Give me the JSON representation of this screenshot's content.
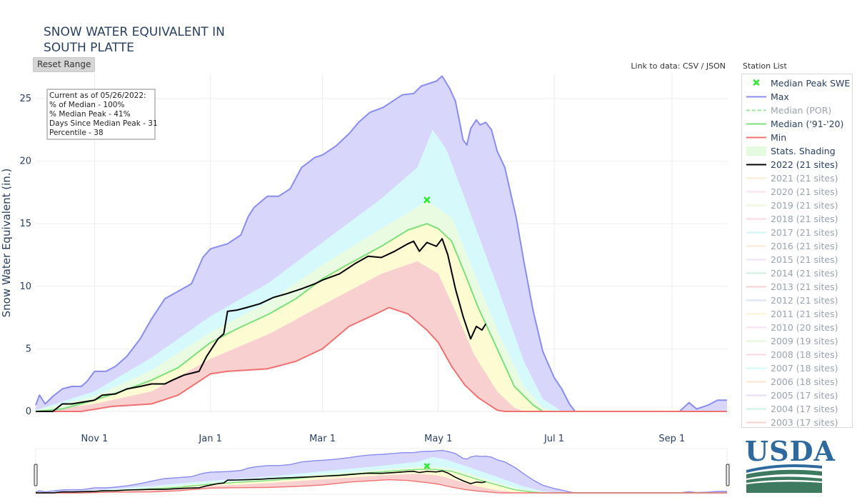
{
  "header": {
    "title_line1": "SNOW WATER EQUIVALENT IN",
    "title_line2": "SOUTH PLATTE",
    "reset_label": "Reset Range",
    "data_link_prefix": "Link to data:",
    "csv_label": "CSV",
    "json_label": "JSON",
    "link_separator": "/",
    "station_list_label": "Station List"
  },
  "info_box": [
    "Current as of 05/26/2022:",
    "% of Median - 100%",
    "% Median Peak - 41%",
    "Days Since Median Peak - 31",
    "Percentile - 38"
  ],
  "logo": {
    "text": "USDA"
  },
  "colors": {
    "max": "#8a8cf0",
    "median": "#7ce07c",
    "min": "#f07070",
    "current": "#000000",
    "peak_marker": "#2ee82e",
    "band_purple": "#d8d6fb",
    "band_cyan": "#d6fafb",
    "band_green": "#e9fbe0",
    "band_yellow": "#fdfbd2",
    "band_red": "#f8d0d0",
    "grid": "#eeeeee",
    "axis_text": "#2a3f5f"
  },
  "chart_data": {
    "type": "area",
    "ylabel": "Snow Water Equivalent (in.)",
    "ylim": [
      0,
      27
    ],
    "yticks": [
      0,
      5,
      10,
      15,
      20,
      25
    ],
    "xlim": [
      "2021-10-01",
      "2022-09-30"
    ],
    "xticks": [
      {
        "date": "2021-11-01",
        "label": "Nov  1"
      },
      {
        "date": "2022-01-01",
        "label": "Jan  1"
      },
      {
        "date": "2022-03-01",
        "label": "Mar  1"
      },
      {
        "date": "2022-05-01",
        "label": "May  1"
      },
      {
        "date": "2022-07-01",
        "label": "Jul  1"
      },
      {
        "date": "2022-09-01",
        "label": "Sep  1"
      }
    ],
    "grid": true,
    "legend_position": "right",
    "median_peak": {
      "date": "2022-04-25",
      "value": 16.9
    },
    "series": [
      {
        "name": "Max",
        "kind": "max",
        "points": [
          [
            "2021-10-01",
            0.5
          ],
          [
            "2021-10-03",
            1.3
          ],
          [
            "2021-10-06",
            0.6
          ],
          [
            "2021-10-10",
            1.2
          ],
          [
            "2021-10-15",
            1.8
          ],
          [
            "2021-10-20",
            2.0
          ],
          [
            "2021-10-25",
            2.0
          ],
          [
            "2021-10-28",
            2.4
          ],
          [
            "2021-11-01",
            3.2
          ],
          [
            "2021-11-07",
            3.2
          ],
          [
            "2021-11-12",
            3.6
          ],
          [
            "2021-11-18",
            4.4
          ],
          [
            "2021-11-25",
            5.8
          ],
          [
            "2021-12-01",
            7.4
          ],
          [
            "2021-12-08",
            9.0
          ],
          [
            "2021-12-15",
            9.6
          ],
          [
            "2021-12-22",
            10.2
          ],
          [
            "2021-12-28",
            12.3
          ],
          [
            "2022-01-01",
            13.0
          ],
          [
            "2022-01-10",
            13.4
          ],
          [
            "2022-01-17",
            14.1
          ],
          [
            "2022-01-21",
            15.6
          ],
          [
            "2022-01-24",
            16.3
          ],
          [
            "2022-01-31",
            17.2
          ],
          [
            "2022-02-06",
            17.2
          ],
          [
            "2022-02-12",
            17.8
          ],
          [
            "2022-02-18",
            19.5
          ],
          [
            "2022-02-25",
            20.3
          ],
          [
            "2022-03-01",
            20.5
          ],
          [
            "2022-03-08",
            21.2
          ],
          [
            "2022-03-15",
            22.2
          ],
          [
            "2022-03-20",
            23.1
          ],
          [
            "2022-03-26",
            23.9
          ],
          [
            "2022-04-02",
            24.3
          ],
          [
            "2022-04-08",
            24.9
          ],
          [
            "2022-04-12",
            25.3
          ],
          [
            "2022-04-18",
            25.4
          ],
          [
            "2022-04-22",
            26.0
          ],
          [
            "2022-04-26",
            26.2
          ],
          [
            "2022-04-30",
            26.4
          ],
          [
            "2022-05-03",
            26.8
          ],
          [
            "2022-05-07",
            25.8
          ],
          [
            "2022-05-10",
            24.8
          ],
          [
            "2022-05-12",
            23.3
          ],
          [
            "2022-05-14",
            21.7
          ],
          [
            "2022-05-16",
            21.3
          ],
          [
            "2022-05-18",
            22.6
          ],
          [
            "2022-05-21",
            23.3
          ],
          [
            "2022-05-23",
            22.9
          ],
          [
            "2022-05-26",
            23.1
          ],
          [
            "2022-05-29",
            22.5
          ],
          [
            "2022-06-01",
            20.8
          ],
          [
            "2022-06-05",
            19.5
          ],
          [
            "2022-06-08",
            17.5
          ],
          [
            "2022-06-11",
            15.5
          ],
          [
            "2022-06-15",
            12.0
          ],
          [
            "2022-06-20",
            8.0
          ],
          [
            "2022-06-25",
            4.8
          ],
          [
            "2022-07-01",
            2.7
          ],
          [
            "2022-07-05",
            1.8
          ],
          [
            "2022-07-09",
            0.6
          ],
          [
            "2022-07-12",
            0.0
          ],
          [
            "2022-09-05",
            0.0
          ],
          [
            "2022-09-10",
            0.7
          ],
          [
            "2022-09-14",
            0.2
          ],
          [
            "2022-09-20",
            0.5
          ],
          [
            "2022-09-25",
            0.9
          ],
          [
            "2022-09-30",
            0.9
          ]
        ]
      },
      {
        "name": "Median ('91-'20)",
        "kind": "median",
        "points": [
          [
            "2021-10-01",
            0.0
          ],
          [
            "2021-10-15",
            0.2
          ],
          [
            "2021-11-01",
            0.9
          ],
          [
            "2021-11-15",
            1.6
          ],
          [
            "2021-12-01",
            2.5
          ],
          [
            "2021-12-15",
            3.5
          ],
          [
            "2022-01-01",
            5.5
          ],
          [
            "2022-01-15",
            6.6
          ],
          [
            "2022-02-01",
            7.8
          ],
          [
            "2022-02-15",
            9.0
          ],
          [
            "2022-03-01",
            10.6
          ],
          [
            "2022-03-15",
            11.8
          ],
          [
            "2022-04-01",
            13.2
          ],
          [
            "2022-04-15",
            14.5
          ],
          [
            "2022-04-25",
            15.0
          ],
          [
            "2022-05-01",
            14.6
          ],
          [
            "2022-05-08",
            13.6
          ],
          [
            "2022-05-15",
            11.0
          ],
          [
            "2022-05-22",
            8.3
          ],
          [
            "2022-06-01",
            5.0
          ],
          [
            "2022-06-10",
            2.0
          ],
          [
            "2022-06-20",
            0.5
          ],
          [
            "2022-06-25",
            0.0
          ],
          [
            "2022-09-30",
            0.0
          ]
        ]
      },
      {
        "name": "Min",
        "kind": "min",
        "points": [
          [
            "2021-10-01",
            0.0
          ],
          [
            "2021-10-25",
            0.0
          ],
          [
            "2021-11-10",
            0.4
          ],
          [
            "2021-12-01",
            0.6
          ],
          [
            "2021-12-15",
            1.3
          ],
          [
            "2022-01-01",
            3.0
          ],
          [
            "2022-01-10",
            3.2
          ],
          [
            "2022-01-31",
            3.4
          ],
          [
            "2022-02-15",
            4.0
          ],
          [
            "2022-03-01",
            5.0
          ],
          [
            "2022-03-15",
            6.8
          ],
          [
            "2022-03-25",
            7.5
          ],
          [
            "2022-04-01",
            8.0
          ],
          [
            "2022-04-05",
            8.3
          ],
          [
            "2022-04-15",
            7.8
          ],
          [
            "2022-04-25",
            6.5
          ],
          [
            "2022-05-01",
            5.5
          ],
          [
            "2022-05-08",
            3.6
          ],
          [
            "2022-05-15",
            2.1
          ],
          [
            "2022-05-22",
            1.1
          ],
          [
            "2022-06-01",
            0.1
          ],
          [
            "2022-06-05",
            0.0
          ],
          [
            "2022-09-30",
            0.0
          ]
        ]
      },
      {
        "name": "2022 (21 sites)",
        "kind": "current",
        "points": [
          [
            "2021-10-01",
            0.0
          ],
          [
            "2021-10-10",
            0.0
          ],
          [
            "2021-10-15",
            0.6
          ],
          [
            "2021-10-20",
            0.6
          ],
          [
            "2021-10-28",
            0.8
          ],
          [
            "2021-11-01",
            0.9
          ],
          [
            "2021-11-05",
            1.3
          ],
          [
            "2021-11-12",
            1.4
          ],
          [
            "2021-11-18",
            1.8
          ],
          [
            "2021-11-25",
            2.0
          ],
          [
            "2021-12-01",
            2.2
          ],
          [
            "2021-12-08",
            2.2
          ],
          [
            "2021-12-12",
            2.5
          ],
          [
            "2021-12-18",
            2.9
          ],
          [
            "2021-12-26",
            3.2
          ],
          [
            "2021-12-30",
            4.4
          ],
          [
            "2022-01-05",
            5.8
          ],
          [
            "2022-01-08",
            6.2
          ],
          [
            "2022-01-10",
            8.0
          ],
          [
            "2022-01-15",
            8.1
          ],
          [
            "2022-01-20",
            8.3
          ],
          [
            "2022-01-27",
            8.6
          ],
          [
            "2022-02-03",
            9.1
          ],
          [
            "2022-02-10",
            9.4
          ],
          [
            "2022-02-18",
            9.8
          ],
          [
            "2022-02-25",
            10.2
          ],
          [
            "2022-03-01",
            10.5
          ],
          [
            "2022-03-10",
            11.0
          ],
          [
            "2022-03-18",
            11.8
          ],
          [
            "2022-03-25",
            12.4
          ],
          [
            "2022-04-01",
            12.3
          ],
          [
            "2022-04-08",
            12.8
          ],
          [
            "2022-04-15",
            13.4
          ],
          [
            "2022-04-18",
            13.6
          ],
          [
            "2022-04-21",
            12.8
          ],
          [
            "2022-04-25",
            13.5
          ],
          [
            "2022-04-30",
            13.2
          ],
          [
            "2022-05-03",
            13.8
          ],
          [
            "2022-05-06",
            12.5
          ],
          [
            "2022-05-10",
            9.8
          ],
          [
            "2022-05-14",
            7.6
          ],
          [
            "2022-05-18",
            5.8
          ],
          [
            "2022-05-21",
            6.8
          ],
          [
            "2022-05-24",
            6.5
          ],
          [
            "2022-05-26",
            7.0
          ]
        ]
      }
    ],
    "percentile_bands": [
      {
        "kind": "cyan_upper",
        "points": [
          [
            "2021-10-01",
            0.1
          ],
          [
            "2021-11-01",
            1.6
          ],
          [
            "2021-12-01",
            4.3
          ],
          [
            "2022-01-01",
            7.6
          ],
          [
            "2022-02-01",
            10.3
          ],
          [
            "2022-03-01",
            13.5
          ],
          [
            "2022-04-01",
            17.0
          ],
          [
            "2022-04-20",
            19.5
          ],
          [
            "2022-04-28",
            22.5
          ],
          [
            "2022-05-05",
            21.0
          ],
          [
            "2022-05-15",
            17.0
          ],
          [
            "2022-06-01",
            10.0
          ],
          [
            "2022-06-15",
            4.0
          ],
          [
            "2022-06-25",
            1.0
          ],
          [
            "2022-07-05",
            0.0
          ],
          [
            "2022-09-30",
            0.0
          ]
        ]
      },
      {
        "kind": "green_upper",
        "points": [
          [
            "2021-10-01",
            0.05
          ],
          [
            "2021-11-01",
            1.2
          ],
          [
            "2021-12-01",
            3.3
          ],
          [
            "2022-01-01",
            6.3
          ],
          [
            "2022-02-01",
            8.8
          ],
          [
            "2022-03-01",
            11.7
          ],
          [
            "2022-04-01",
            14.6
          ],
          [
            "2022-04-25",
            16.8
          ],
          [
            "2022-05-08",
            15.5
          ],
          [
            "2022-05-20",
            11.0
          ],
          [
            "2022-06-01",
            6.5
          ],
          [
            "2022-06-15",
            2.0
          ],
          [
            "2022-06-25",
            0.3
          ],
          [
            "2022-07-01",
            0.0
          ],
          [
            "2022-09-30",
            0.0
          ]
        ]
      },
      {
        "kind": "yellow_lower",
        "points": [
          [
            "2021-10-01",
            0.0
          ],
          [
            "2021-11-01",
            0.6
          ],
          [
            "2021-12-01",
            1.6
          ],
          [
            "2022-01-01",
            4.2
          ],
          [
            "2022-02-01",
            6.2
          ],
          [
            "2022-03-01",
            8.5
          ],
          [
            "2022-04-01",
            11.0
          ],
          [
            "2022-04-20",
            12.0
          ],
          [
            "2022-05-01",
            11.0
          ],
          [
            "2022-05-10",
            8.0
          ],
          [
            "2022-05-20",
            4.5
          ],
          [
            "2022-06-01",
            1.6
          ],
          [
            "2022-06-10",
            0.3
          ],
          [
            "2022-06-15",
            0.0
          ],
          [
            "2022-09-30",
            0.0
          ]
        ]
      }
    ],
    "legend": [
      {
        "label": "Median Peak SWE",
        "sym": "marker",
        "active": true
      },
      {
        "label": "Max",
        "sym": "line",
        "color": "#8a8cf0",
        "active": true
      },
      {
        "label": "Median (POR)",
        "sym": "dash",
        "color": "#9fe89f",
        "active": false
      },
      {
        "label": "Median ('91-'20)",
        "sym": "line",
        "color": "#7ce07c",
        "active": true
      },
      {
        "label": "Min",
        "sym": "line",
        "color": "#f07070",
        "active": true
      },
      {
        "label": "Stats. Shading",
        "sym": "fill",
        "color": "#e4fbe0",
        "active": true
      },
      {
        "label": "2022 (21 sites)",
        "sym": "line",
        "color": "#000000",
        "active": true
      },
      {
        "label": "2021 (21 sites)",
        "sym": "line",
        "color": "#fbd9a8",
        "active": false
      },
      {
        "label": "2020 (21 sites)",
        "sym": "line",
        "color": "#f7c6e4",
        "active": false
      },
      {
        "label": "2019 (21 sites)",
        "sym": "line",
        "color": "#d4f0b8",
        "active": false
      },
      {
        "label": "2018 (21 sites)",
        "sym": "line",
        "color": "#f5b8c8",
        "active": false
      },
      {
        "label": "2017 (21 sites)",
        "sym": "line",
        "color": "#a8eef5",
        "active": false
      },
      {
        "label": "2016 (21 sites)",
        "sym": "line",
        "color": "#fbd2b0",
        "active": false
      },
      {
        "label": "2015 (21 sites)",
        "sym": "line",
        "color": "#d6c2f5",
        "active": false
      },
      {
        "label": "2014 (21 sites)",
        "sym": "line",
        "color": "#9ee3c4",
        "active": false
      },
      {
        "label": "2013 (21 sites)",
        "sym": "line",
        "color": "#f5a3a3",
        "active": false
      },
      {
        "label": "2012 (21 sites)",
        "sym": "line",
        "color": "#b8c0f0",
        "active": false
      },
      {
        "label": "2011 (21 sites)",
        "sym": "line",
        "color": "#fbe5a8",
        "active": false
      },
      {
        "label": "2010 (20 sites)",
        "sym": "line",
        "color": "#f5c0f0",
        "active": false
      },
      {
        "label": "2009 (19 sites)",
        "sym": "line",
        "color": "#c8f0b0",
        "active": false
      },
      {
        "label": "2008 (18 sites)",
        "sym": "line",
        "color": "#f5b0c4",
        "active": false
      },
      {
        "label": "2007 (18 sites)",
        "sym": "line",
        "color": "#a8f0f5",
        "active": false
      },
      {
        "label": "2006 (18 sites)",
        "sym": "line",
        "color": "#fbd0a8",
        "active": false
      },
      {
        "label": "2005 (17 sites)",
        "sym": "line",
        "color": "#d0b8f5",
        "active": false
      },
      {
        "label": "2004 (17 sites)",
        "sym": "line",
        "color": "#98e6c8",
        "active": false
      },
      {
        "label": "2003 (17 sites)",
        "sym": "line",
        "color": "#f5a8a0",
        "active": false
      }
    ]
  }
}
